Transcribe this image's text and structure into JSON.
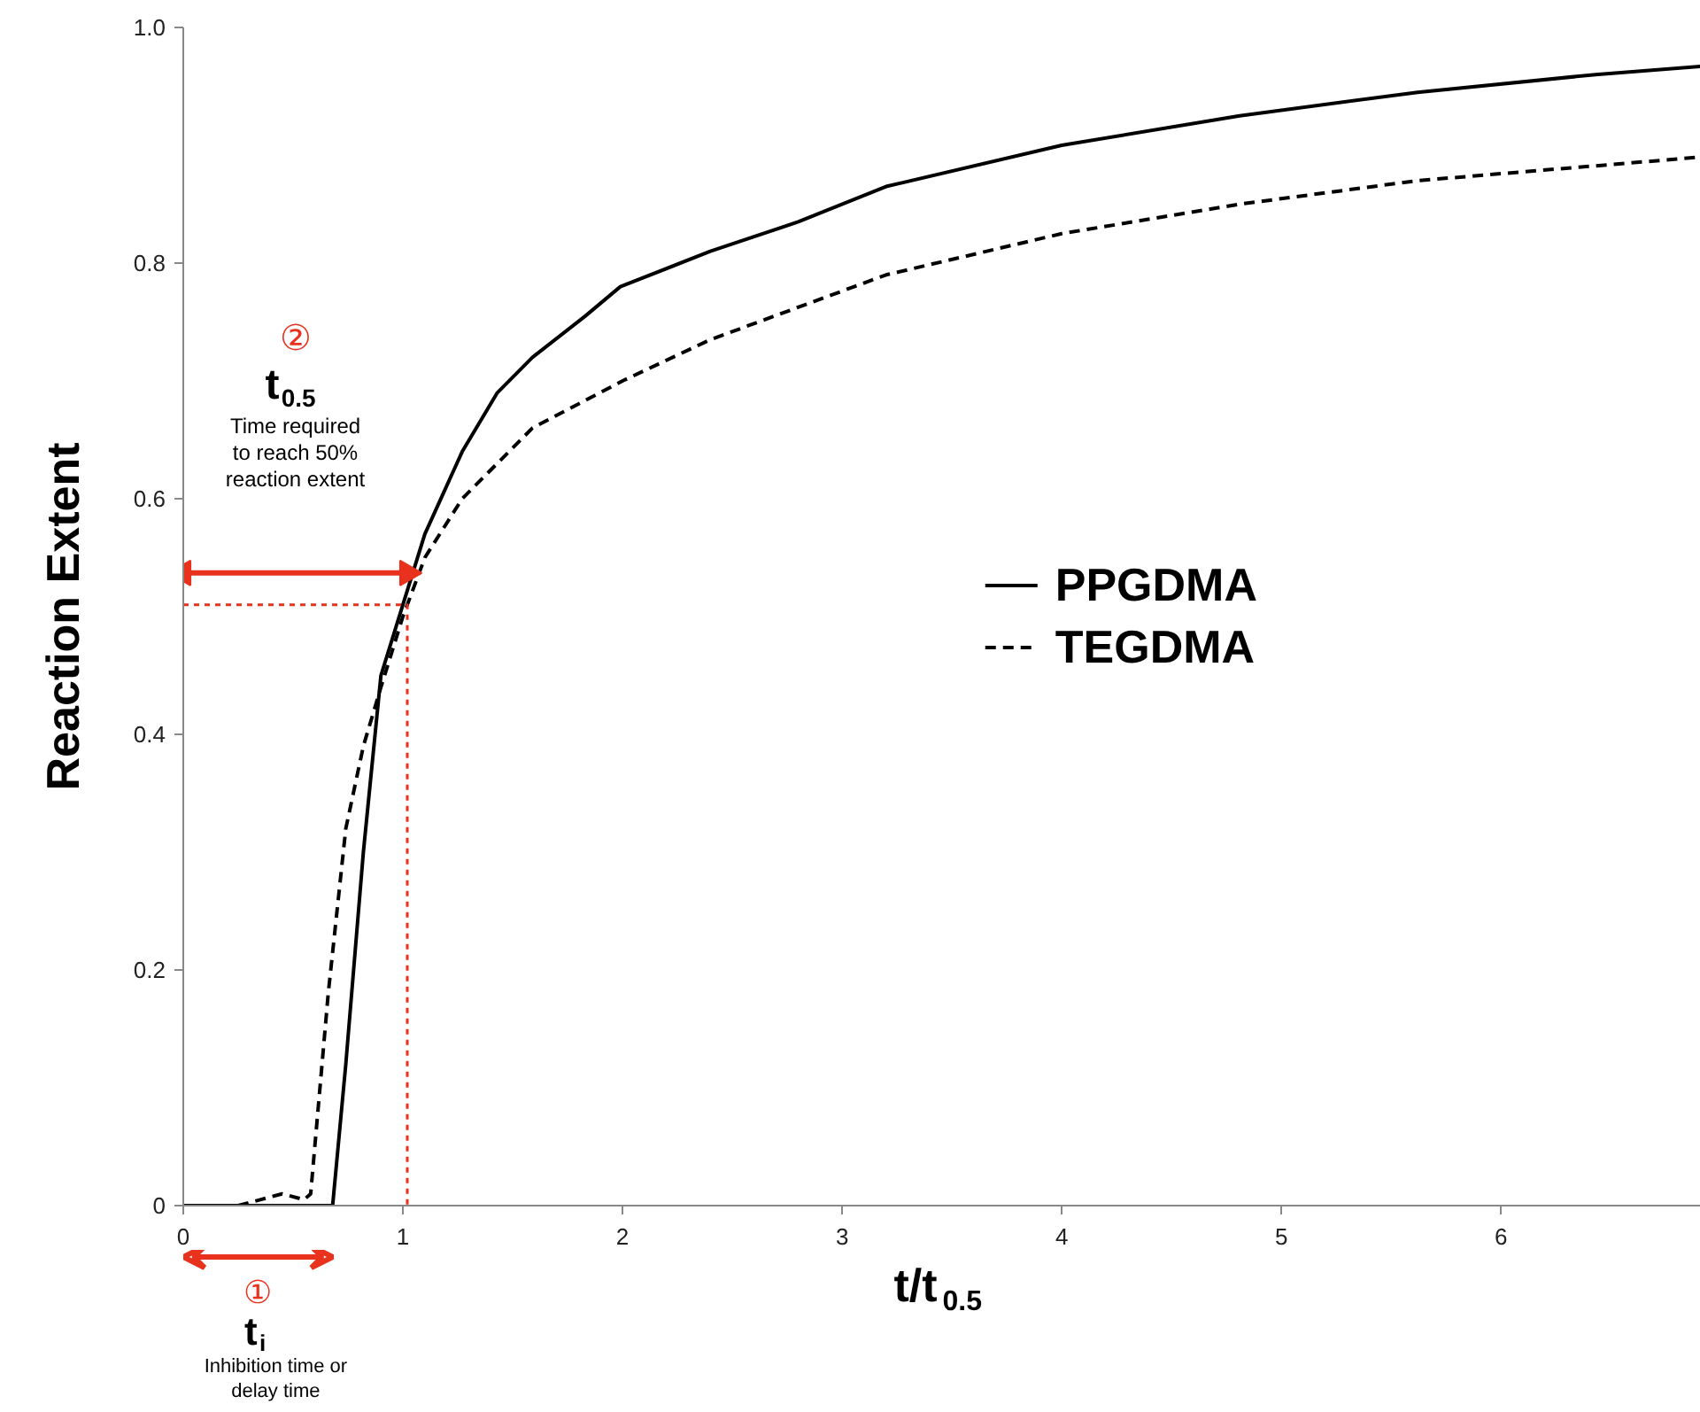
{
  "chart_data": {
    "type": "line",
    "xlabel": "t/t$_{0.5}$",
    "ylabel": "Reaction Extent",
    "xlim": [
      0,
      6.91
    ],
    "ylim": [
      0,
      1.0
    ],
    "xticks": [
      0,
      1,
      2,
      3,
      4,
      5,
      6
    ],
    "yticks": [
      0,
      0.2,
      0.4,
      0.6,
      0.8,
      {
        "value": 1.0,
        "label": "1.0"
      }
    ],
    "grid": false,
    "legend": "right",
    "marker": "none",
    "tick_labels": true,
    "series": [
      {
        "name": "PPGDMA",
        "color": "#000000",
        "line_style": "solid",
        "x": [
          0,
          0.3,
          0.5,
          0.68,
          0.74,
          0.82,
          0.9,
          1.0,
          1.1,
          1.27,
          1.43,
          1.59,
          1.83,
          1.99,
          2.4,
          2.8,
          3.2,
          4.0,
          4.81,
          5.62,
          6.43,
          6.91
        ],
        "values": [
          0,
          0,
          0,
          0,
          0.12,
          0.3,
          0.45,
          0.51,
          0.57,
          0.64,
          0.69,
          0.72,
          0.755,
          0.78,
          0.81,
          0.835,
          0.865,
          0.9,
          0.925,
          0.945,
          0.96,
          0.967
        ]
      },
      {
        "name": "TEGDMA",
        "color": "#000000",
        "line_style": "dashed",
        "x": [
          0.25,
          0.35,
          0.45,
          0.55,
          0.58,
          0.66,
          0.74,
          0.82,
          0.9,
          1.0,
          1.1,
          1.27,
          1.59,
          2.0,
          2.4,
          3.2,
          4.0,
          4.81,
          5.62,
          6.91
        ],
        "values": [
          0,
          0.005,
          0.01,
          0.005,
          0.01,
          0.18,
          0.32,
          0.39,
          0.44,
          0.5,
          0.55,
          0.6,
          0.66,
          0.7,
          0.735,
          0.79,
          0.825,
          0.85,
          0.87,
          0.89
        ]
      },
      {
        "color": "#e8321e",
        "line_style": "dotted",
        "x": [
          0,
          1.02,
          1.02
        ],
        "values": [
          0.51,
          0.51,
          0
        ]
      },
      {
        "color": "#e8321e",
        "line_style": "solid",
        "marker": "triangle",
        "x": [
          0,
          1.02
        ],
        "values": [
          0.537,
          0.537
        ]
      }
    ],
    "annotations": [
      "①",
      "t$_{i}$",
      "Inhibition time or\ndelay time",
      "②",
      "t$_{0.5}$",
      "Time required\nto reach 50%\nreaction extent"
    ]
  }
}
